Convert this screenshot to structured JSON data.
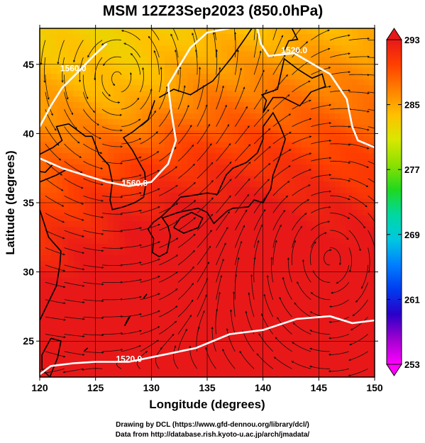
{
  "chart_data": {
    "type": "heatmap",
    "title": "MSM 12Z23Sep2023 (850.0hPa)",
    "xlabel": "Longitude (degrees)",
    "ylabel": "Latitude  (degrees)",
    "xlim": [
      120,
      150
    ],
    "ylim": [
      22.4,
      47.6
    ],
    "xticks": [
      120,
      125,
      130,
      135,
      140,
      145,
      150
    ],
    "yticks": [
      25,
      30,
      35,
      40,
      45
    ],
    "grid": true,
    "colorbar": {
      "min": 253,
      "max": 293,
      "ticks": [
        253,
        261,
        269,
        277,
        285,
        293
      ],
      "colors": [
        "#ff00ff",
        "#a000d0",
        "#2a00c8",
        "#003cf0",
        "#0080ff",
        "#00c8e0",
        "#00d8a0",
        "#20d820",
        "#8ce000",
        "#d8e800",
        "#ffc000",
        "#ff8000",
        "#ff4000",
        "#e81818"
      ],
      "extend": "both"
    },
    "height_contours": [
      {
        "label": "1560.0",
        "lon": 128.5,
        "lat": 36.2
      },
      {
        "label": "1520.0",
        "lon": 128.0,
        "lat": 23.5
      },
      {
        "label": "1520.0",
        "lon": 142.8,
        "lat": 45.8
      },
      {
        "label": "1560.0",
        "lon": 123.0,
        "lat": 44.5
      }
    ]
  },
  "credits": {
    "line1": "Drawing by DCL (https://www.gfd-dennou.org/library/dcl/)",
    "line2": "Data from http://database.rish.kyoto-u.ac.jp/arch/jmadata/"
  },
  "colors": {
    "contour": "#ffffff",
    "streamline": "#111111",
    "coast": "#000000",
    "grid": "#000000"
  }
}
